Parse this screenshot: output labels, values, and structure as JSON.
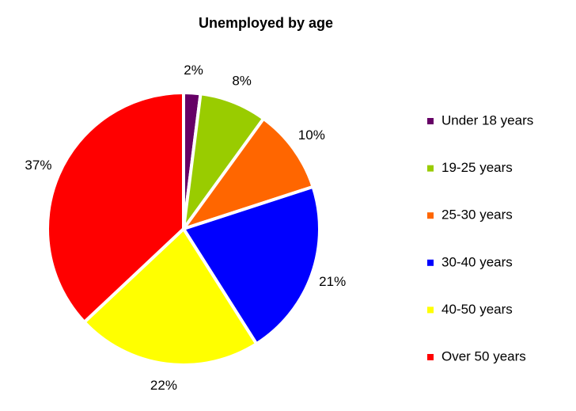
{
  "chart_data": {
    "type": "pie",
    "title": "Unemployed by age",
    "categories": [
      "Under 18 years",
      "19-25 years",
      "25-30 years",
      "30-40 years",
      "40-50 years",
      "Over 50 years"
    ],
    "values": [
      2,
      8,
      10,
      21,
      22,
      37
    ],
    "value_labels": [
      "2%",
      "8%",
      "10%",
      "21%",
      "22%",
      "37%"
    ],
    "colors": [
      "#660066",
      "#99cc00",
      "#ff6600",
      "#0000ff",
      "#ffff00",
      "#ff0000"
    ],
    "legend": "right"
  }
}
